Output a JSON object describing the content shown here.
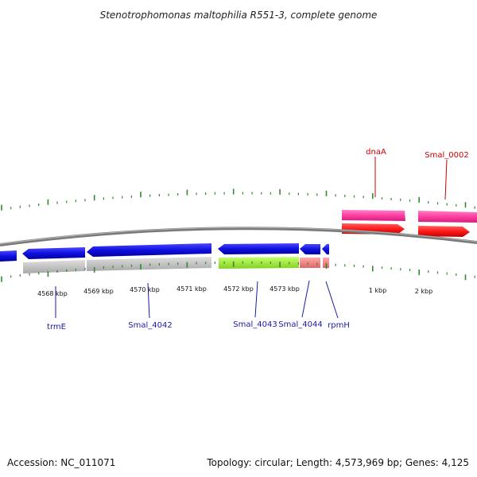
{
  "title": "Stenotrophomonas maltophilia R551-3, complete genome",
  "footer": {
    "accession": "Accession: NC_011071",
    "summary": "Topology: circular; Length: 4,573,969 bp; Genes: 4,125"
  },
  "ruler": {
    "tick_labels": [
      "4568 kbp",
      "4569 kbp",
      "4570 kbp",
      "4571 kbp",
      "4572 kbp",
      "4573 kbp",
      "1 kbp",
      "2 kbp"
    ]
  },
  "genes": {
    "forward": [
      {
        "name": "dnaA",
        "strand": "+",
        "color": "#ff1a1a",
        "shadow": "#ff3fa0"
      },
      {
        "name": "Smal_0002",
        "strand": "+",
        "color": "#ff1a1a",
        "shadow": "#ff3fa0"
      }
    ],
    "reverse": [
      {
        "name": "",
        "strand": "-",
        "color": "#1010e0",
        "shadow": "#c4c4c4"
      },
      {
        "name": "trmE",
        "strand": "-",
        "color": "#1010e0",
        "shadow": "#c4c4c4"
      },
      {
        "name": "Smal_4042",
        "strand": "-",
        "color": "#1010e0",
        "shadow": "#c4c4c4"
      },
      {
        "name": "Smal_4043",
        "strand": "-",
        "color": "#1010e0",
        "shadow": "#a8f040"
      },
      {
        "name": "Smal_4044",
        "strand": "-",
        "color": "#1010e0",
        "shadow": "#f08080"
      },
      {
        "name": "rpmH",
        "strand": "-",
        "color": "#1010e0",
        "shadow": "#f08080"
      }
    ]
  },
  "colors": {
    "backbone": "#7a7a7a",
    "tick": "#2e8b2e",
    "label_blue": "#1a1aa8",
    "label_red": "#cc0000"
  }
}
